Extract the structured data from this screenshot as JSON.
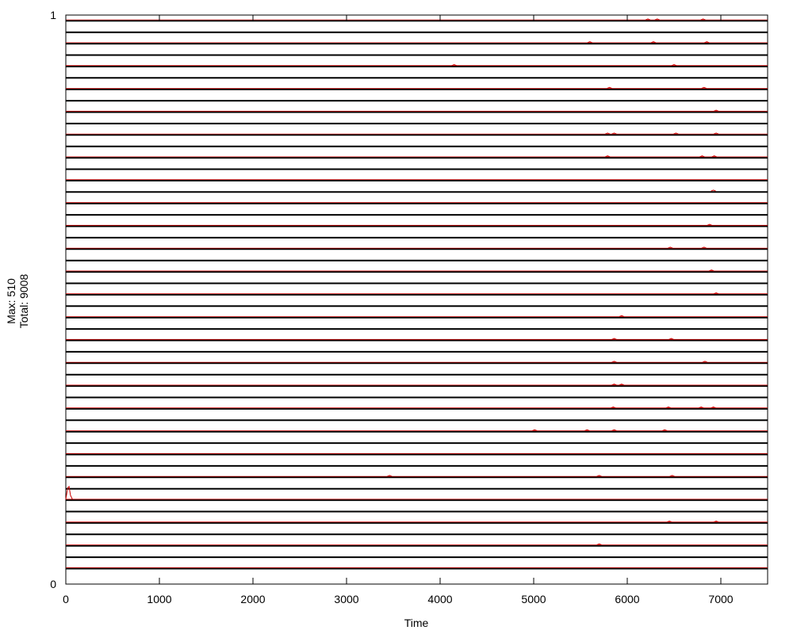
{
  "chart_data": {
    "type": "line",
    "title": "",
    "xlabel": "Time",
    "ylabel_lines": [
      "Max: 510",
      "Total: 9008"
    ],
    "xlim": [
      0,
      7500
    ],
    "ylim": [
      0,
      1
    ],
    "x_ticks": [
      0,
      1000,
      2000,
      3000,
      4000,
      5000,
      6000,
      7000
    ],
    "y_ticks": [
      0,
      1
    ],
    "grid": false,
    "legend": "none",
    "colors": {
      "baseline": "#000000",
      "activity": "#cc0000"
    },
    "lanes": 50,
    "baseline_note": "each lane has a flat black baseline",
    "activity": [
      {
        "lane": 48,
        "events": [
          [
            6220,
            0.05
          ],
          [
            6320,
            0.05
          ],
          [
            6810,
            0.03
          ]
        ]
      },
      {
        "lane": 46,
        "events": [
          [
            5600,
            0.02
          ],
          [
            6280,
            0.03
          ],
          [
            6850,
            0.02
          ]
        ]
      },
      {
        "lane": 44,
        "events": [
          [
            4150,
            0.01
          ],
          [
            6500,
            0.02
          ]
        ]
      },
      {
        "lane": 42,
        "events": [
          [
            5810,
            0.05
          ],
          [
            6820,
            0.02
          ]
        ]
      },
      {
        "lane": 40,
        "events": [
          [
            6950,
            0.02
          ]
        ]
      },
      {
        "lane": 38,
        "events": [
          [
            5790,
            0.06
          ],
          [
            5860,
            0.05
          ],
          [
            6520,
            0.02
          ],
          [
            6950,
            0.02
          ]
        ]
      },
      {
        "lane": 36,
        "events": [
          [
            5790,
            0.03
          ],
          [
            6800,
            0.04
          ],
          [
            6930,
            0.03
          ]
        ]
      },
      {
        "lane": 33,
        "events": [
          [
            6920,
            0.02
          ]
        ]
      },
      {
        "lane": 30,
        "events": [
          [
            6880,
            0.02
          ]
        ]
      },
      {
        "lane": 28,
        "events": [
          [
            6460,
            0.05
          ],
          [
            6820,
            0.03
          ]
        ]
      },
      {
        "lane": 26,
        "events": [
          [
            6900,
            0.02
          ]
        ]
      },
      {
        "lane": 24,
        "events": [
          [
            6950,
            0.02
          ]
        ]
      },
      {
        "lane": 22,
        "events": [
          [
            5940,
            0.05
          ]
        ]
      },
      {
        "lane": 20,
        "events": [
          [
            5860,
            0.03
          ],
          [
            6470,
            0.02
          ]
        ]
      },
      {
        "lane": 18,
        "events": [
          [
            5860,
            0.03
          ],
          [
            6830,
            0.02
          ]
        ]
      },
      {
        "lane": 16,
        "events": [
          [
            5860,
            0.04
          ],
          [
            5940,
            0.03
          ]
        ]
      },
      {
        "lane": 14,
        "events": [
          [
            5850,
            0.04
          ],
          [
            6440,
            0.04
          ],
          [
            6790,
            0.03
          ],
          [
            6920,
            0.03
          ]
        ]
      },
      {
        "lane": 12,
        "events": [
          [
            5010,
            0.02
          ],
          [
            5570,
            0.02
          ],
          [
            5860,
            0.07
          ],
          [
            6400,
            0.02
          ]
        ]
      },
      {
        "lane": 8,
        "events": [
          [
            3460,
            0.02
          ],
          [
            5700,
            0.02
          ],
          [
            6480,
            0.02
          ]
        ]
      },
      {
        "lane": 6,
        "events": [
          [
            20,
            0.9
          ],
          [
            35,
            1.0
          ],
          [
            50,
            0.3
          ]
        ]
      },
      {
        "lane": 4,
        "events": [
          [
            6450,
            0.05
          ],
          [
            6950,
            0.05
          ]
        ]
      },
      {
        "lane": 2,
        "events": [
          [
            5700,
            0.01
          ]
        ]
      }
    ]
  }
}
